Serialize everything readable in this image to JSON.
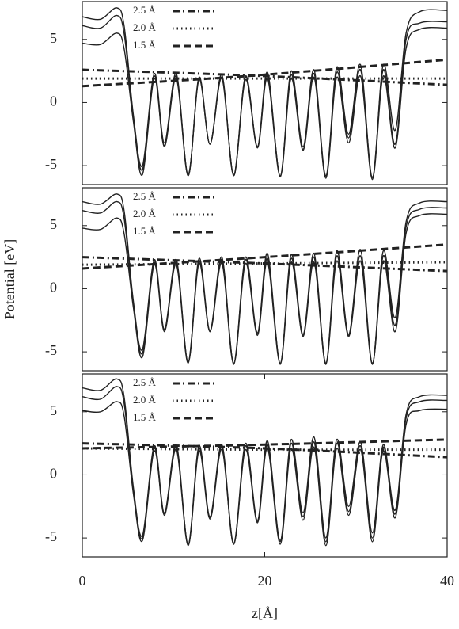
{
  "chart_data": [
    {
      "type": "line",
      "xlim": [
        0,
        40
      ],
      "ylim": [
        -6.5,
        8
      ],
      "yticks": [
        -5,
        0,
        5
      ],
      "series": [
        {
          "style": "solid",
          "color": "#222222",
          "x": [
            0,
            2,
            3.8,
            4.6,
            5.6,
            6.6,
            7.9,
            9.0,
            10.3,
            11.6,
            12.8,
            14.0,
            15.3,
            16.6,
            17.9,
            19.2,
            20.3,
            21.7,
            22.9,
            24.2,
            25.4,
            26.7,
            27.9,
            29.2,
            30.5,
            31.8,
            33.0,
            34.3,
            35.5,
            37,
            40
          ],
          "values": [
            6.8,
            6.6,
            7.5,
            6.0,
            -1,
            -5.0,
            2.3,
            -3.2,
            2.3,
            -5.8,
            2.0,
            -3.3,
            2.2,
            -5.8,
            2.1,
            -3.5,
            2.4,
            -5.8,
            2.5,
            -3.5,
            2.6,
            -5.8,
            2.8,
            -2.5,
            3.0,
            -6.0,
            3.0,
            -2.2,
            5.5,
            7.2,
            7.3
          ]
        },
        {
          "style": "solid",
          "color": "#222222",
          "x": [
            0,
            2,
            3.8,
            4.6,
            5.6,
            6.6,
            7.9,
            9.0,
            10.3,
            11.6,
            12.8,
            14.0,
            15.3,
            16.6,
            17.9,
            19.2,
            20.3,
            21.7,
            22.9,
            24.2,
            25.4,
            26.7,
            27.9,
            29.2,
            30.5,
            31.8,
            33.0,
            34.3,
            35.5,
            37,
            40
          ],
          "values": [
            6.1,
            5.9,
            6.9,
            5.4,
            -1.2,
            -5.3,
            2.1,
            -3.4,
            2.1,
            -5.7,
            1.9,
            -3.3,
            2.0,
            -5.7,
            2.0,
            -3.5,
            2.2,
            -5.8,
            2.2,
            -3.7,
            2.3,
            -5.9,
            2.4,
            -2.8,
            2.6,
            -5.9,
            2.6,
            -3.3,
            5.0,
            6.3,
            6.4
          ]
        },
        {
          "style": "solid",
          "color": "#222222",
          "x": [
            0,
            2,
            3.8,
            4.6,
            5.6,
            6.6,
            7.9,
            9.0,
            10.3,
            11.6,
            12.8,
            14.0,
            15.3,
            16.6,
            17.9,
            19.2,
            20.3,
            21.7,
            22.9,
            24.2,
            25.4,
            26.7,
            27.9,
            29.2,
            30.5,
            31.8,
            33.0,
            34.3,
            35.5,
            37,
            40
          ],
          "values": [
            4.7,
            4.6,
            5.5,
            4.2,
            -1.5,
            -5.7,
            1.9,
            -3.5,
            1.9,
            -5.8,
            1.8,
            -3.3,
            1.9,
            -5.8,
            1.8,
            -3.6,
            1.9,
            -5.9,
            1.9,
            -3.8,
            2.0,
            -6.0,
            2.0,
            -3.2,
            2.1,
            -6.1,
            2.1,
            -3.6,
            4.3,
            5.8,
            5.9
          ]
        },
        {
          "name": "2.5 Å",
          "style": "dashdot",
          "color": "#222222",
          "x": [
            0,
            20,
            40
          ],
          "values": [
            2.6,
            2.1,
            1.4
          ]
        },
        {
          "name": "2.0 Å",
          "style": "dotted",
          "color": "#222222",
          "x": [
            0,
            20,
            40
          ],
          "values": [
            1.9,
            1.9,
            1.9
          ]
        },
        {
          "name": "1.5 Å",
          "style": "dashed",
          "color": "#222222",
          "x": [
            0,
            18,
            40
          ],
          "values": [
            1.3,
            2.1,
            3.4
          ]
        }
      ]
    },
    {
      "type": "line",
      "xlim": [
        0,
        40
      ],
      "ylim": [
        -6.5,
        8
      ],
      "yticks": [
        -5,
        0,
        5
      ],
      "ylabel": "Potential [eV]",
      "series": [
        {
          "style": "solid",
          "color": "#222222",
          "x": [
            0,
            2,
            3.8,
            4.6,
            5.6,
            6.6,
            7.9,
            9.0,
            10.3,
            11.6,
            12.8,
            14.0,
            15.3,
            16.6,
            17.9,
            19.2,
            20.3,
            21.7,
            22.9,
            24.2,
            25.4,
            26.7,
            27.9,
            29.2,
            30.5,
            31.8,
            33.0,
            34.3,
            35.5,
            37,
            40
          ],
          "values": [
            6.9,
            6.7,
            7.5,
            6.1,
            -1,
            -4.8,
            2.3,
            -3.2,
            2.3,
            -5.8,
            2.4,
            -3.3,
            2.5,
            -5.9,
            2.5,
            -3.5,
            2.8,
            -5.9,
            2.7,
            -3.6,
            2.8,
            -5.9,
            3.0,
            -3.6,
            3.1,
            -5.9,
            3.0,
            -2.3,
            5.3,
            6.8,
            6.9
          ]
        },
        {
          "style": "solid",
          "color": "#222222",
          "x": [
            0,
            2,
            3.8,
            4.6,
            5.6,
            6.6,
            7.9,
            9.0,
            10.3,
            11.6,
            12.8,
            14.0,
            15.3,
            16.6,
            17.9,
            19.2,
            20.3,
            21.7,
            22.9,
            24.2,
            25.4,
            26.7,
            27.9,
            29.2,
            30.5,
            31.8,
            33.0,
            34.3,
            35.5,
            37,
            40
          ],
          "values": [
            6.2,
            6.0,
            6.9,
            5.5,
            -1.2,
            -5.1,
            2.1,
            -3.3,
            2.1,
            -5.8,
            2.2,
            -3.4,
            2.3,
            -5.9,
            2.3,
            -3.6,
            2.4,
            -5.9,
            2.4,
            -3.7,
            2.5,
            -5.9,
            2.6,
            -3.7,
            2.6,
            -5.9,
            2.6,
            -2.9,
            4.9,
            6.3,
            6.4
          ]
        },
        {
          "style": "solid",
          "color": "#222222",
          "x": [
            0,
            2,
            3.8,
            4.6,
            5.6,
            6.6,
            7.9,
            9.0,
            10.3,
            11.6,
            12.8,
            14.0,
            15.3,
            16.6,
            17.9,
            19.2,
            20.3,
            21.7,
            22.9,
            24.2,
            25.4,
            26.7,
            27.9,
            29.2,
            30.5,
            31.8,
            33.0,
            34.3,
            35.5,
            37,
            40
          ],
          "values": [
            4.8,
            4.7,
            5.6,
            4.3,
            -1.5,
            -5.4,
            1.9,
            -3.4,
            1.9,
            -5.9,
            2.0,
            -3.4,
            2.0,
            -6.0,
            2.0,
            -3.7,
            2.1,
            -6.0,
            2.1,
            -3.8,
            2.1,
            -6.0,
            2.2,
            -3.8,
            2.2,
            -6.0,
            2.2,
            -3.4,
            4.4,
            5.8,
            5.9
          ]
        },
        {
          "name": "2.5 Å",
          "style": "dashdot",
          "color": "#222222",
          "x": [
            0,
            20,
            40
          ],
          "values": [
            2.5,
            2.0,
            1.4
          ]
        },
        {
          "name": "2.0 Å",
          "style": "dotted",
          "color": "#222222",
          "x": [
            0,
            20,
            40
          ],
          "values": [
            1.9,
            2.0,
            2.1
          ]
        },
        {
          "name": "1.5 Å",
          "style": "dashed",
          "color": "#222222",
          "x": [
            0,
            20,
            40
          ],
          "values": [
            1.6,
            2.5,
            3.5
          ]
        }
      ]
    },
    {
      "type": "line",
      "xlim": [
        0,
        40
      ],
      "ylim": [
        -6.5,
        8
      ],
      "yticks": [
        -5,
        0,
        5
      ],
      "xticks": [
        0,
        20,
        40
      ],
      "xlabel": "z[Å]",
      "series": [
        {
          "style": "solid",
          "color": "#222222",
          "x": [
            0,
            2,
            3.8,
            4.6,
            5.6,
            6.6,
            7.9,
            9.0,
            10.3,
            11.6,
            12.8,
            14.0,
            15.3,
            16.6,
            17.9,
            19.2,
            20.3,
            21.7,
            22.9,
            24.2,
            25.4,
            26.7,
            27.9,
            29.2,
            30.5,
            31.8,
            33.0,
            34.3,
            35.5,
            37,
            40
          ],
          "values": [
            6.9,
            6.7,
            7.6,
            6.1,
            -1,
            -4.8,
            2.3,
            -3.0,
            2.4,
            -5.5,
            2.3,
            -3.3,
            2.4,
            -5.4,
            2.5,
            -3.6,
            2.7,
            -5.2,
            2.8,
            -3.0,
            3.0,
            -5.0,
            2.8,
            -2.5,
            2.6,
            -4.6,
            2.4,
            -2.8,
            4.8,
            6.2,
            6.3
          ]
        },
        {
          "style": "solid",
          "color": "#222222",
          "x": [
            0,
            2,
            3.8,
            4.6,
            5.6,
            6.6,
            7.9,
            9.0,
            10.3,
            11.6,
            12.8,
            14.0,
            15.3,
            16.6,
            17.9,
            19.2,
            20.3,
            21.7,
            22.9,
            24.2,
            25.4,
            26.7,
            27.9,
            29.2,
            30.5,
            31.8,
            33.0,
            34.3,
            35.5,
            37,
            40
          ],
          "values": [
            6.2,
            6.0,
            7.0,
            5.6,
            -1.2,
            -5.0,
            2.1,
            -3.1,
            2.2,
            -5.5,
            2.1,
            -3.4,
            2.2,
            -5.5,
            2.3,
            -3.7,
            2.4,
            -5.3,
            2.5,
            -3.3,
            2.6,
            -5.3,
            2.5,
            -2.9,
            2.3,
            -5.0,
            2.2,
            -3.1,
            4.5,
            5.8,
            5.9
          ]
        },
        {
          "style": "solid",
          "color": "#222222",
          "x": [
            0,
            2,
            3.8,
            4.6,
            5.6,
            6.6,
            7.9,
            9.0,
            10.3,
            11.6,
            12.8,
            14.0,
            15.3,
            16.6,
            17.9,
            19.2,
            20.3,
            21.7,
            22.9,
            24.2,
            25.4,
            26.7,
            27.9,
            29.2,
            30.5,
            31.8,
            33.0,
            34.3,
            35.5,
            37,
            40
          ],
          "values": [
            5.1,
            5.0,
            5.8,
            4.6,
            -1.5,
            -5.2,
            1.9,
            -3.2,
            2.0,
            -5.6,
            1.9,
            -3.5,
            2.0,
            -5.5,
            2.0,
            -3.8,
            2.1,
            -5.5,
            2.1,
            -3.6,
            2.2,
            -5.6,
            2.1,
            -3.2,
            2.0,
            -5.3,
            1.9,
            -3.4,
            4.0,
            5.1,
            5.2
          ]
        },
        {
          "name": "2.5 Å",
          "style": "dashdot",
          "color": "#222222",
          "x": [
            0,
            20,
            40
          ],
          "values": [
            2.5,
            2.1,
            1.4
          ]
        },
        {
          "name": "2.0 Å",
          "style": "dotted",
          "color": "#222222",
          "x": [
            0,
            20,
            40
          ],
          "values": [
            2.1,
            2.0,
            2.0
          ]
        },
        {
          "name": "1.5 Å",
          "style": "dashed",
          "color": "#222222",
          "x": [
            0,
            20,
            40
          ],
          "values": [
            2.1,
            2.4,
            2.8
          ]
        }
      ]
    }
  ]
}
